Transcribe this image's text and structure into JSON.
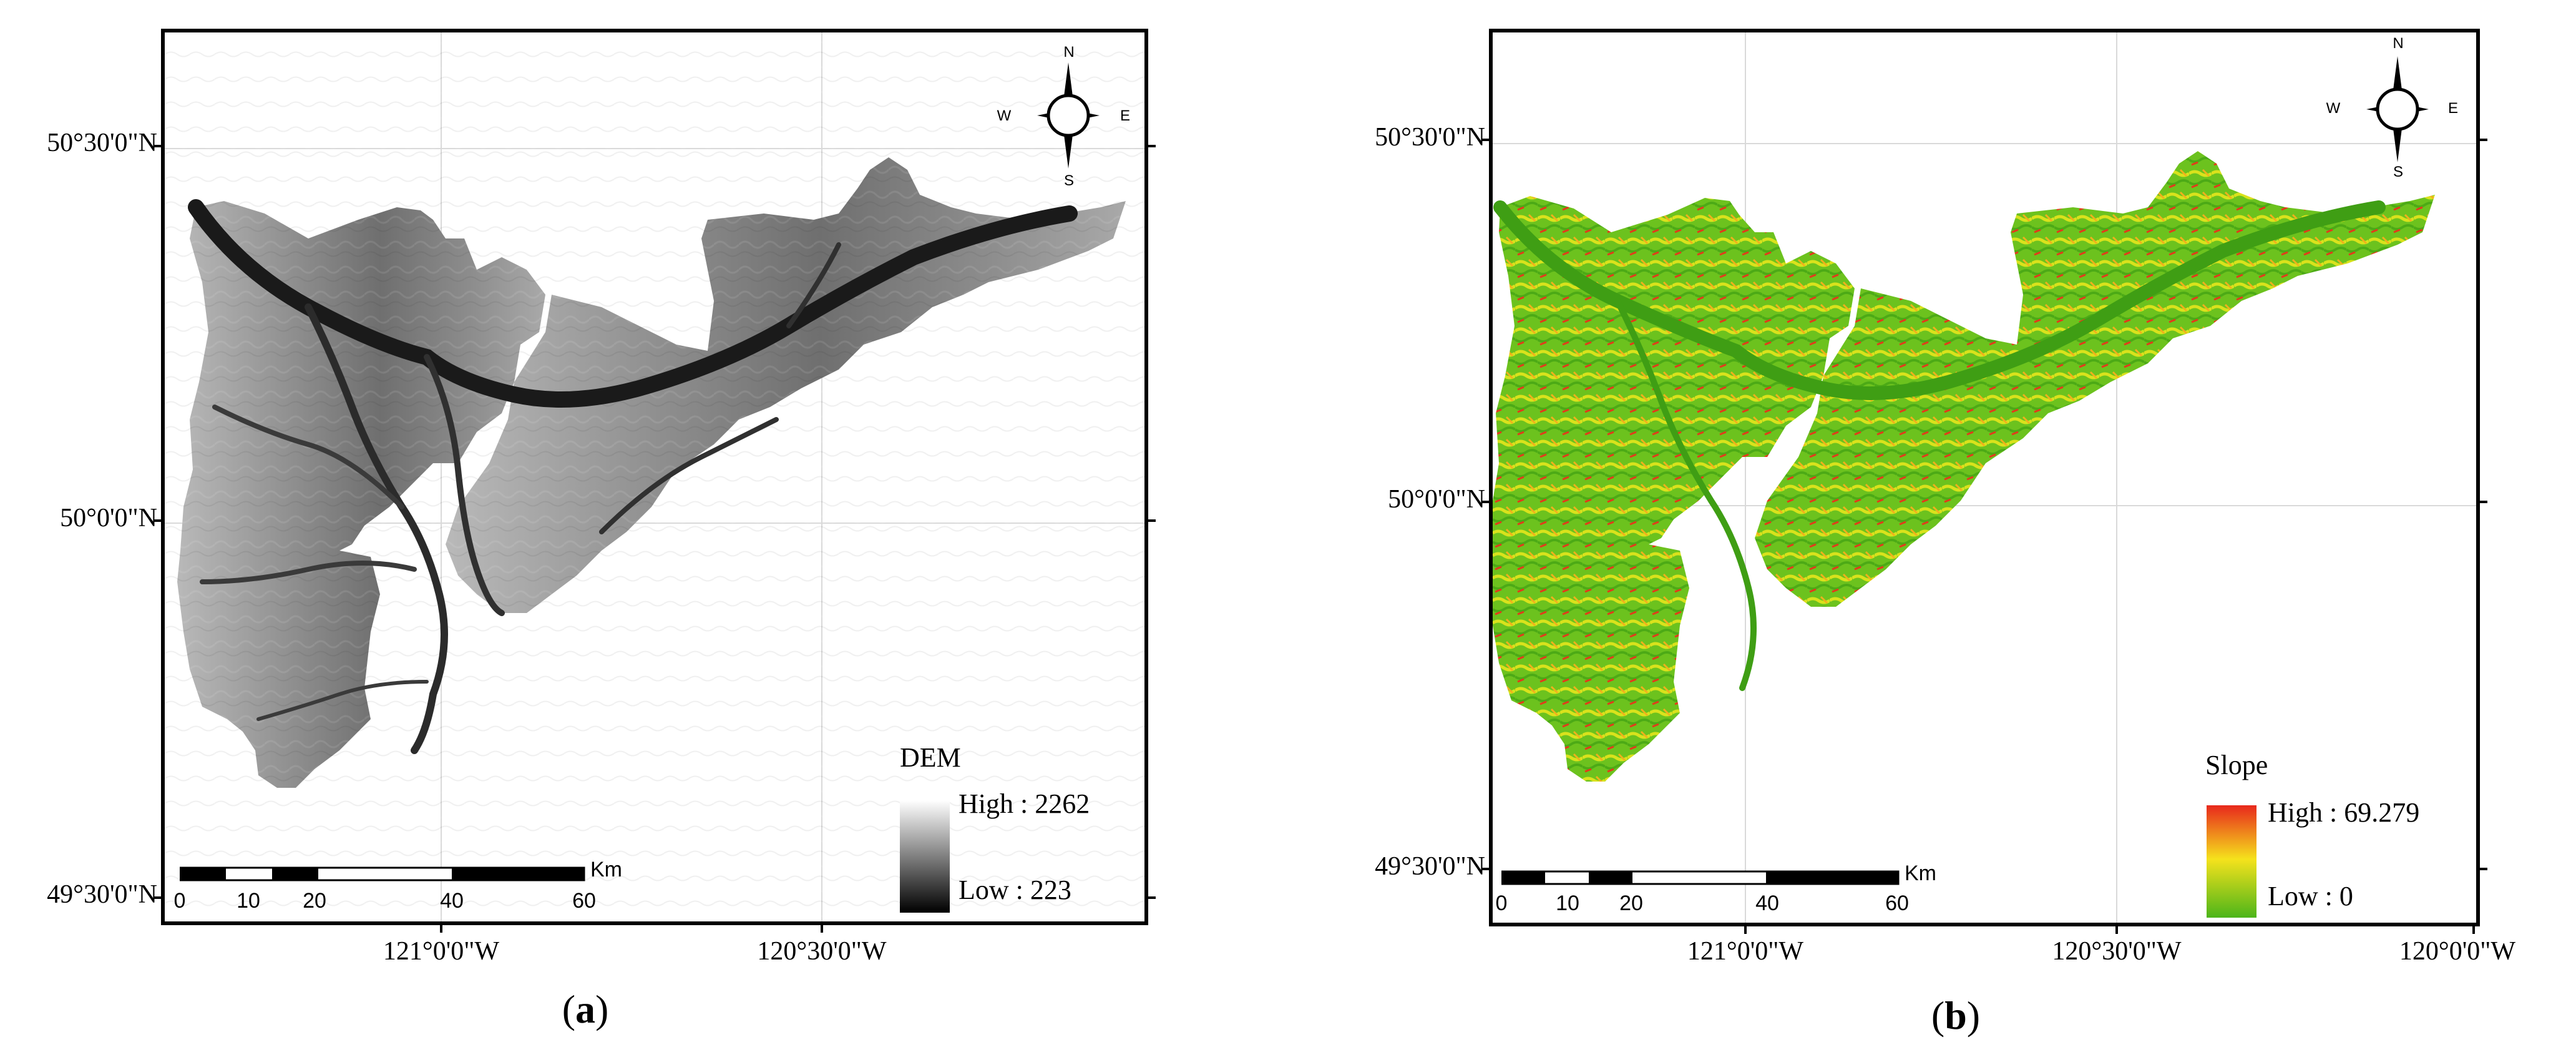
{
  "panels": {
    "a": {
      "label": "a",
      "lat_labels": [
        "50°30'0\"N",
        "50°0'0\"N",
        "49°30'0\"N"
      ],
      "lon_labels": [
        "121°0'0\"W",
        "120°30'0\"W"
      ],
      "legend": {
        "title": "DEM",
        "high": "High : 2262",
        "low": "Low : 223",
        "colors": [
          "#ffffff",
          "#000000"
        ]
      },
      "scale": {
        "ticks": [
          "0",
          "10",
          "20",
          "40",
          "60"
        ],
        "unit": "Km"
      },
      "compass": {
        "n": "N",
        "s": "S",
        "e": "E",
        "w": "W"
      }
    },
    "b": {
      "label": "b",
      "lat_labels": [
        "50°30'0\"N",
        "50°0'0\"N",
        "49°30'0\"N"
      ],
      "lon_labels": [
        "121°0'0\"W",
        "120°30'0\"W",
        "120°0'0\"W"
      ],
      "legend": {
        "title": "Slope",
        "high": "High : 69.279",
        "low": "Low : 0",
        "colors": [
          "#e8281c",
          "#f5e21c",
          "#4cb51a"
        ]
      },
      "scale": {
        "ticks": [
          "0",
          "10",
          "20",
          "40",
          "60"
        ],
        "unit": "Km"
      },
      "compass": {
        "n": "N",
        "s": "S",
        "e": "E",
        "w": "W"
      }
    }
  }
}
